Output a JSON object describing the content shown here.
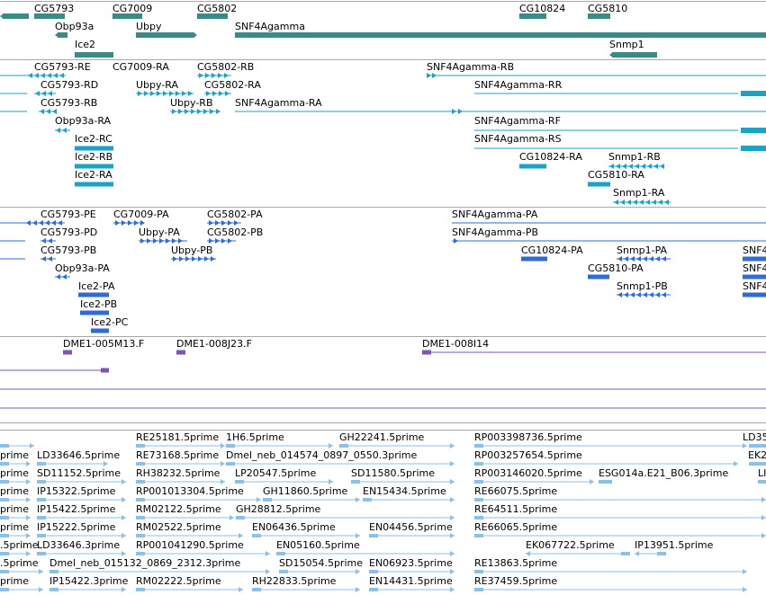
{
  "colors": {
    "gene": "#3a8a8a",
    "transcript": "#1aa3c4",
    "protein": "#2f6bd6",
    "clone": "#7b55b8",
    "est": "#8cc0e6",
    "separator": "#a9a9a9"
  },
  "gene_track": {
    "items": [
      {
        "name": "CG5793"
      },
      {
        "name": "CG7009"
      },
      {
        "name": "CG5802"
      },
      {
        "name": "CG10824"
      },
      {
        "name": "CG5810"
      },
      {
        "name": "Obp93a"
      },
      {
        "name": "Ubpy"
      },
      {
        "name": "SNF4Agamma"
      },
      {
        "name": "Ice2"
      },
      {
        "name": "Snmp1"
      }
    ]
  },
  "transcript_track": {
    "items": [
      {
        "name": "CG5793-RE"
      },
      {
        "name": "CG7009-RA"
      },
      {
        "name": "CG5802-RB"
      },
      {
        "name": "SNF4Agamma-RB"
      },
      {
        "name": "CG5793-RD"
      },
      {
        "name": "Ubpy-RA"
      },
      {
        "name": "CG5802-RA"
      },
      {
        "name": "SNF4Agamma-RR"
      },
      {
        "name": "CG5793-RB"
      },
      {
        "name": "Ubpy-RB"
      },
      {
        "name": "SNF4Agamma-RA"
      },
      {
        "name": "Obp93a-RA"
      },
      {
        "name": "SNF4Agamma-RF"
      },
      {
        "name": "Ice2-RC"
      },
      {
        "name": "SNF4Agamma-RS"
      },
      {
        "name": "Ice2-RB"
      },
      {
        "name": "CG10824-RA"
      },
      {
        "name": "Snmp1-RB"
      },
      {
        "name": "Ice2-RA"
      },
      {
        "name": "CG5810-RA"
      },
      {
        "name": "Snmp1-RA"
      }
    ]
  },
  "protein_track": {
    "items": [
      {
        "name": "CG5793-PE"
      },
      {
        "name": "CG7009-PA"
      },
      {
        "name": "CG5802-PA"
      },
      {
        "name": "SNF4Agamma-PA"
      },
      {
        "name": "CG5793-PD"
      },
      {
        "name": "Ubpy-PA"
      },
      {
        "name": "CG5802-PB"
      },
      {
        "name": "SNF4Agamma-PB"
      },
      {
        "name": "CG5793-PB"
      },
      {
        "name": "Ubpy-PB"
      },
      {
        "name": "CG10824-PA"
      },
      {
        "name": "Snmp1-PA"
      },
      {
        "name": "Obp93a-PA"
      },
      {
        "name": "CG5810-PA"
      },
      {
        "name": "Ice2-PA"
      },
      {
        "name": "Snmp1-PB"
      },
      {
        "name": "Ice2-PB"
      },
      {
        "name": "Ice2-PC"
      },
      {
        "name": "SNF4"
      },
      {
        "name": "SNF4"
      },
      {
        "name": "SNF4"
      }
    ]
  },
  "clone_track": {
    "items": [
      {
        "name": "DME1-005M13.F"
      },
      {
        "name": "DME1-008J23.F"
      },
      {
        "name": "DME1-008I14"
      }
    ]
  },
  "est_track": {
    "items": [
      {
        "name": "RE25181.5prime"
      },
      {
        "name": "1H6.5prime"
      },
      {
        "name": "GH22241.5prime"
      },
      {
        "name": "RP003398736.5prime"
      },
      {
        "name": "LD35"
      },
      {
        "name": "prime"
      },
      {
        "name": "LD33646.5prime"
      },
      {
        "name": "RE73168.5prime"
      },
      {
        "name": "Dmel_neb_014574_0897_0550.3prime"
      },
      {
        "name": "RP003257654.5prime"
      },
      {
        "name": "EK2"
      },
      {
        "name": "prime"
      },
      {
        "name": "SD11152.5prime"
      },
      {
        "name": "RH38232.5prime"
      },
      {
        "name": "LP20547.5prime"
      },
      {
        "name": "SD11580.5prime"
      },
      {
        "name": "RP003146020.5prime"
      },
      {
        "name": "ESG014a.E21_B06.3prime"
      },
      {
        "name": "LI"
      },
      {
        "name": "prime"
      },
      {
        "name": "IP15322.5prime"
      },
      {
        "name": "RP001013304.5prime"
      },
      {
        "name": "GH11860.5prime"
      },
      {
        "name": "EN15434.5prime"
      },
      {
        "name": "RE66075.5prime"
      },
      {
        "name": "prime"
      },
      {
        "name": "IP15422.5prime"
      },
      {
        "name": "RM02122.5prime"
      },
      {
        "name": "GH28812.5prime"
      },
      {
        "name": "RE64511.5prime"
      },
      {
        "name": "prime"
      },
      {
        "name": "IP15222.5prime"
      },
      {
        "name": "RM02522.5prime"
      },
      {
        "name": "EN06436.5prime"
      },
      {
        "name": "EN04456.5prime"
      },
      {
        "name": "RE66065.5prime"
      },
      {
        "name": ".5prime"
      },
      {
        "name": "LD33646.3prime"
      },
      {
        "name": "RP001041290.5prime"
      },
      {
        "name": "EN05160.5prime"
      },
      {
        "name": "EK067722.5prime"
      },
      {
        "name": "IP13951.5prime"
      },
      {
        "name": ".5prime"
      },
      {
        "name": "Dmel_neb_015132_0869_2312.3prime"
      },
      {
        "name": "SD15054.5prime"
      },
      {
        "name": "EN06923.5prime"
      },
      {
        "name": "RE13863.5prime"
      },
      {
        "name": "prime"
      },
      {
        "name": "IP15422.3prime"
      },
      {
        "name": "RM02222.5prime"
      },
      {
        "name": "RH22833.5prime"
      },
      {
        "name": "EN14431.5prime"
      },
      {
        "name": "RE37459.5prime"
      }
    ]
  }
}
